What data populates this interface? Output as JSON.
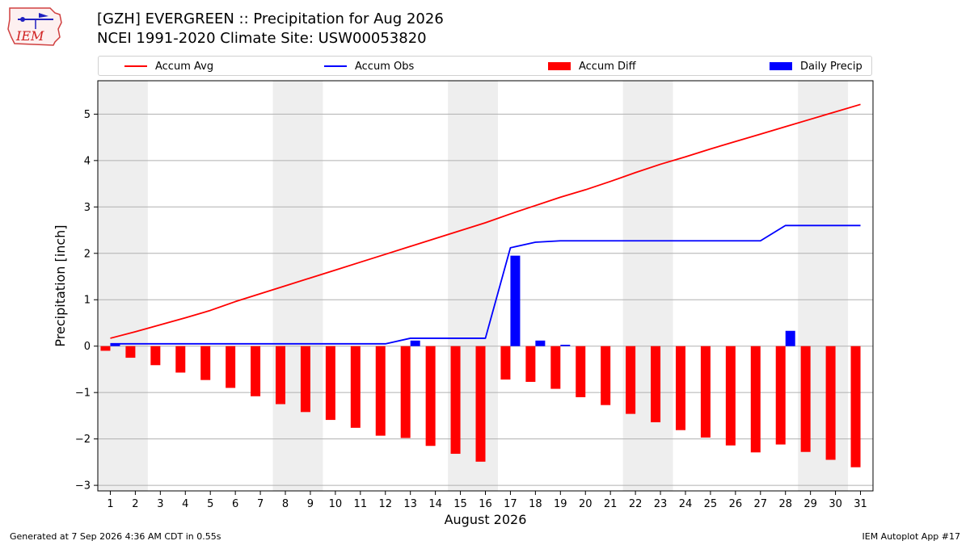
{
  "header": {
    "title_line1": "[GZH] EVERGREEN :: Precipitation for Aug 2026",
    "title_line2": "NCEI 1991-2020 Climate Site: USW00053820"
  },
  "logo": {
    "text": "IEM"
  },
  "footer": {
    "left": "Generated at 7 Sep 2026 4:36 AM CDT in 0.55s",
    "right": "IEM Autoplot App #17"
  },
  "chart_data": {
    "type": "bar",
    "xlabel": "August 2026",
    "ylabel": "Precipitation [inch]",
    "xlim": [
      0.5,
      31.5
    ],
    "ylim": [
      -3.12,
      5.72
    ],
    "yticks": [
      -3,
      -2,
      -1,
      0,
      1,
      2,
      3,
      4,
      5
    ],
    "ytick_labels": [
      "−3",
      "−2",
      "−1",
      "0",
      "1",
      "2",
      "3",
      "4",
      "5"
    ],
    "grid": "y",
    "legend_placement": "top",
    "weekend_shading": [
      [
        0.5,
        2.5
      ],
      [
        7.5,
        9.5
      ],
      [
        14.5,
        16.5
      ],
      [
        21.5,
        23.5
      ],
      [
        28.5,
        30.5
      ]
    ],
    "days": [
      1,
      2,
      3,
      4,
      5,
      6,
      7,
      8,
      9,
      10,
      11,
      12,
      13,
      14,
      15,
      16,
      17,
      18,
      19,
      20,
      21,
      22,
      23,
      24,
      25,
      26,
      27,
      28,
      29,
      30,
      31
    ],
    "series": [
      {
        "name": "Accum Avg",
        "kind": "line",
        "color": "#ff0000",
        "values": [
          0.17,
          0.31,
          0.46,
          0.61,
          0.77,
          0.96,
          1.13,
          1.3,
          1.47,
          1.64,
          1.81,
          1.98,
          2.15,
          2.32,
          2.49,
          2.66,
          2.85,
          3.03,
          3.21,
          3.37,
          3.55,
          3.74,
          3.92,
          4.08,
          4.25,
          4.41,
          4.57,
          4.73,
          4.89,
          5.05,
          5.21
        ]
      },
      {
        "name": "Accum Obs",
        "kind": "line",
        "color": "#0000ff",
        "values": [
          0.05,
          0.05,
          0.05,
          0.05,
          0.05,
          0.05,
          0.05,
          0.05,
          0.05,
          0.05,
          0.05,
          0.05,
          0.17,
          0.17,
          0.17,
          0.17,
          2.12,
          2.24,
          2.27,
          2.27,
          2.27,
          2.27,
          2.27,
          2.27,
          2.27,
          2.27,
          2.27,
          2.6,
          2.6,
          2.6,
          2.6
        ]
      },
      {
        "name": "Accum Diff",
        "kind": "bar",
        "color": "#ff0000",
        "values": [
          -0.1,
          -0.25,
          -0.41,
          -0.57,
          -0.73,
          -0.9,
          -1.08,
          -1.25,
          -1.42,
          -1.59,
          -1.76,
          -1.93,
          -1.98,
          -2.15,
          -2.32,
          -2.49,
          -0.72,
          -0.77,
          -0.92,
          -1.1,
          -1.27,
          -1.46,
          -1.64,
          -1.81,
          -1.97,
          -2.14,
          -2.29,
          -2.12,
          -2.28,
          -2.45,
          -2.61
        ]
      },
      {
        "name": "Daily Precip",
        "kind": "bar",
        "color": "#0000ff",
        "values": [
          0.05,
          0,
          0,
          0,
          0,
          0,
          0,
          0,
          0,
          0,
          0,
          0,
          0.12,
          0,
          0,
          0,
          1.95,
          0.12,
          0.03,
          0,
          0,
          0,
          0,
          0,
          0,
          0,
          0,
          0.33,
          0,
          0,
          0
        ]
      }
    ]
  }
}
